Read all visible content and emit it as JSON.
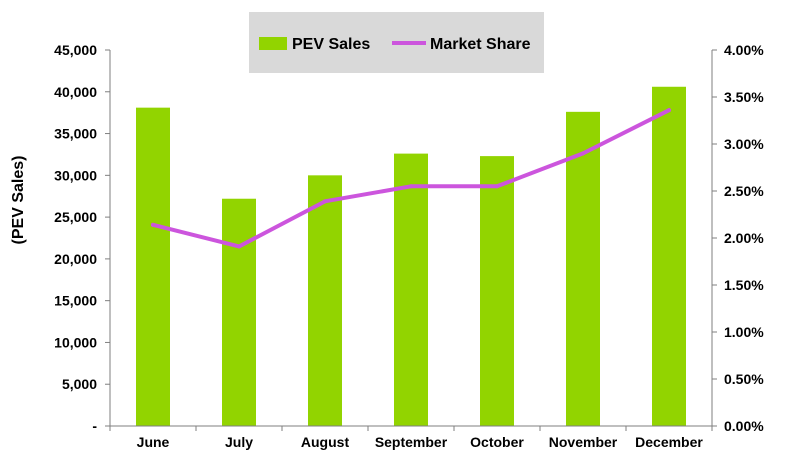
{
  "chart_data": {
    "type": "bar",
    "categories": [
      "June",
      "July",
      "August",
      "September",
      "October",
      "November",
      "December"
    ],
    "series": [
      {
        "name": "PEV Sales",
        "type": "bar",
        "axis": "left",
        "color": "#92D400",
        "values": [
          38100,
          27200,
          30000,
          32600,
          32300,
          37600,
          40600
        ]
      },
      {
        "name": "Market Share",
        "type": "line",
        "axis": "right",
        "color": "#CC55DD",
        "values": [
          0.0214,
          0.0191,
          0.0239,
          0.0255,
          0.0255,
          0.029,
          0.0336
        ]
      }
    ],
    "ylabel": "(PEV Sales)",
    "ylim": [
      0,
      45000
    ],
    "y_ticks": [
      "-",
      "5,000",
      "10,000",
      "15,000",
      "20,000",
      "25,000",
      "30,000",
      "35,000",
      "40,000",
      "45,000"
    ],
    "y2lim": [
      0,
      0.04
    ],
    "y2_ticks": [
      "0.00%",
      "0.50%",
      "1.00%",
      "1.50%",
      "2.00%",
      "2.50%",
      "3.00%",
      "3.50%",
      "4.00%"
    ],
    "legend_placement": "top-center",
    "legend_background": "#D9D9D9",
    "grid": false
  }
}
